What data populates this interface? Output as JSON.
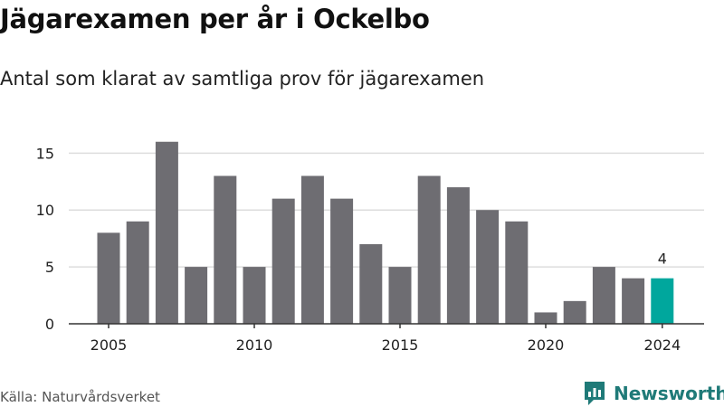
{
  "chart_data": {
    "type": "bar",
    "title": "Jägarexamen per år i Ockelbo",
    "subtitle": "Antal som klarat av samtliga prov för jägarexamen",
    "x": [
      2005,
      2006,
      2007,
      2008,
      2009,
      2010,
      2011,
      2012,
      2013,
      2014,
      2015,
      2016,
      2017,
      2018,
      2019,
      2020,
      2021,
      2022,
      2023,
      2024
    ],
    "values": [
      8,
      9,
      16,
      5,
      13,
      5,
      11,
      13,
      11,
      7,
      5,
      13,
      12,
      10,
      9,
      1,
      2,
      5,
      4,
      4
    ],
    "x_ticks": [
      2005,
      2010,
      2015,
      2020,
      2024
    ],
    "y_ticks": [
      0,
      5,
      10,
      15
    ],
    "ylim": [
      0,
      15.9
    ],
    "grid": true,
    "legend": "none",
    "highlight": {
      "x": 2024,
      "label": "4"
    },
    "colors": {
      "bar": "#6e6d72",
      "highlight": "#00a79d",
      "grid": "#dddddd",
      "axis": "#333333",
      "text": "#222222"
    }
  },
  "source": "Källa: Naturvårdsverket",
  "brand": {
    "name": "Newsworthy",
    "icon": "newsworthy-logo-icon",
    "color": "#1f7a78"
  }
}
